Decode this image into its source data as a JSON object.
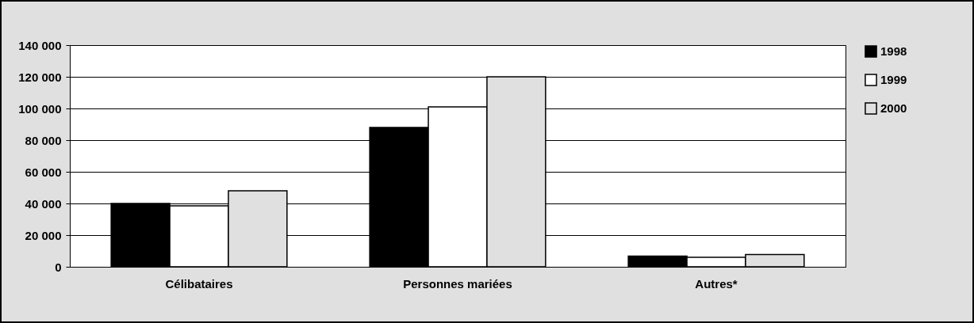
{
  "chart_data": {
    "type": "bar",
    "categories": [
      "Célibataires",
      "Personnes mariées",
      "Autres*"
    ],
    "series": [
      {
        "name": "1998",
        "color": "#000000",
        "values": [
          40000,
          88000,
          6750
        ]
      },
      {
        "name": "1999",
        "color": "#ffffff",
        "values": [
          38500,
          101000,
          6000
        ]
      },
      {
        "name": "2000",
        "color": "#e0e0e0",
        "values": [
          48000,
          120000,
          7800
        ]
      }
    ],
    "ylim": [
      0,
      140000
    ],
    "yticks": [
      {
        "value": 0,
        "label": "0"
      },
      {
        "value": 20000,
        "label": "20 000"
      },
      {
        "value": 40000,
        "label": "40 000"
      },
      {
        "value": 60000,
        "label": "60 000"
      },
      {
        "value": 80000,
        "label": "80 000"
      },
      {
        "value": 100000,
        "label": "100 000"
      },
      {
        "value": 120000,
        "label": "120 000"
      },
      {
        "value": 140000,
        "label": "140 000"
      }
    ],
    "grid": "y",
    "legend": "right"
  }
}
